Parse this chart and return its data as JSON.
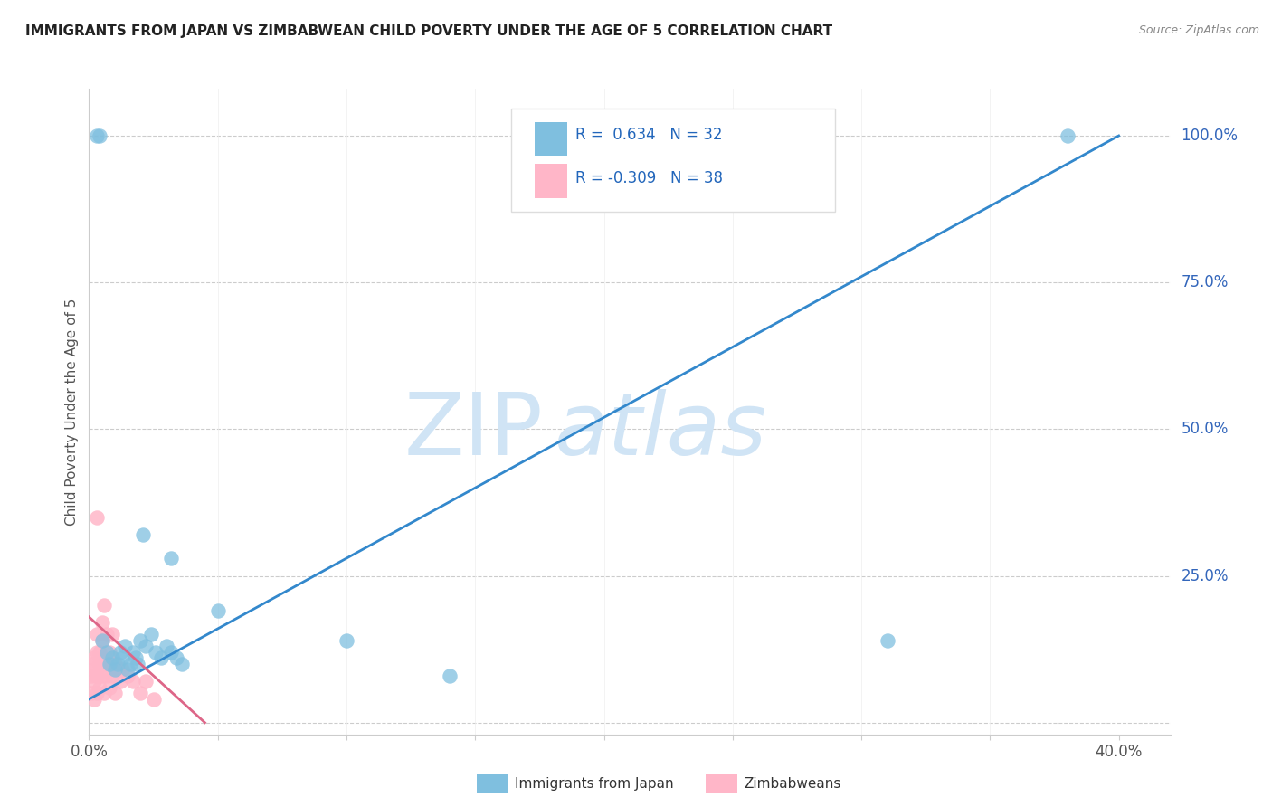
{
  "title": "IMMIGRANTS FROM JAPAN VS ZIMBABWEAN CHILD POVERTY UNDER THE AGE OF 5 CORRELATION CHART",
  "source": "Source: ZipAtlas.com",
  "ylabel": "Child Poverty Under the Age of 5",
  "x_ticks": [
    0.0,
    0.05,
    0.1,
    0.15,
    0.2,
    0.25,
    0.3,
    0.35,
    0.4
  ],
  "y_ticks_right": [
    0.0,
    0.25,
    0.5,
    0.75,
    1.0
  ],
  "y_tick_labels_right": [
    "",
    "25.0%",
    "50.0%",
    "75.0%",
    "100.0%"
  ],
  "xlim": [
    0.0,
    0.42
  ],
  "ylim": [
    -0.02,
    1.08
  ],
  "blue_R": 0.634,
  "blue_N": 32,
  "pink_R": -0.309,
  "pink_N": 38,
  "blue_scatter_x": [
    0.021,
    0.032,
    0.005,
    0.007,
    0.008,
    0.009,
    0.01,
    0.011,
    0.012,
    0.013,
    0.014,
    0.015,
    0.016,
    0.017,
    0.018,
    0.019,
    0.02,
    0.022,
    0.024,
    0.026,
    0.028,
    0.03,
    0.032,
    0.034,
    0.036,
    0.05,
    0.1,
    0.14,
    0.31,
    0.38,
    0.003,
    0.004
  ],
  "blue_scatter_y": [
    0.32,
    0.28,
    0.14,
    0.12,
    0.1,
    0.11,
    0.09,
    0.1,
    0.12,
    0.11,
    0.13,
    0.09,
    0.1,
    0.12,
    0.11,
    0.1,
    0.14,
    0.13,
    0.15,
    0.12,
    0.11,
    0.13,
    0.12,
    0.11,
    0.1,
    0.19,
    0.14,
    0.08,
    0.14,
    1.0,
    1.0,
    1.0
  ],
  "pink_scatter_x": [
    0.001,
    0.001,
    0.001,
    0.002,
    0.002,
    0.002,
    0.002,
    0.003,
    0.003,
    0.003,
    0.003,
    0.004,
    0.004,
    0.004,
    0.005,
    0.005,
    0.005,
    0.006,
    0.006,
    0.006,
    0.007,
    0.007,
    0.007,
    0.008,
    0.008,
    0.009,
    0.009,
    0.01,
    0.01,
    0.011,
    0.012,
    0.013,
    0.015,
    0.017,
    0.02,
    0.022,
    0.025,
    0.003
  ],
  "pink_scatter_y": [
    0.05,
    0.08,
    0.1,
    0.04,
    0.07,
    0.09,
    0.11,
    0.12,
    0.15,
    0.05,
    0.08,
    0.1,
    0.06,
    0.12,
    0.08,
    0.14,
    0.17,
    0.1,
    0.2,
    0.05,
    0.08,
    0.15,
    0.1,
    0.12,
    0.06,
    0.08,
    0.15,
    0.1,
    0.05,
    0.09,
    0.07,
    0.09,
    0.08,
    0.07,
    0.05,
    0.07,
    0.04,
    0.35
  ],
  "blue_line_x": [
    0.0,
    0.4
  ],
  "blue_line_y": [
    0.04,
    1.0
  ],
  "pink_line_x": [
    0.0,
    0.045
  ],
  "pink_line_y": [
    0.18,
    0.0
  ],
  "watermark_zip": "ZIP",
  "watermark_atlas": "atlas",
  "watermark_color": "#d0e4f5",
  "background_color": "#ffffff",
  "blue_color": "#7fbfdf",
  "pink_color": "#ffb6c8",
  "blue_line_color": "#3388cc",
  "pink_line_color": "#dd6688",
  "grid_color": "#cccccc",
  "title_color": "#222222",
  "legend_label_blue": "Immigrants from Japan",
  "legend_label_pink": "Zimbabweans",
  "r_label_color": "#2266bb",
  "axis_label_color": "#3366bb"
}
